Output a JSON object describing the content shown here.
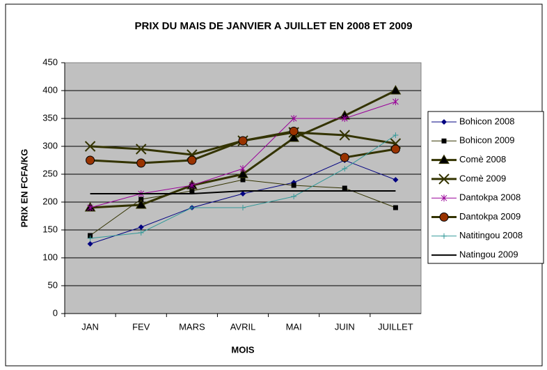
{
  "chart_data": {
    "type": "line",
    "title": "PRIX DU MAIS DE JANVIER A JUILLET EN 2008 ET 2009",
    "x_label": "MOIS",
    "y_label": "PRIX EN FCFA/KG",
    "categories": [
      "JAN",
      "FEV",
      "MARS",
      "AVRIL",
      "MAI",
      "JUIN",
      "JUILLET"
    ],
    "ylim": [
      0,
      450
    ],
    "yticks": [
      0,
      50,
      100,
      150,
      200,
      250,
      300,
      350,
      400,
      450
    ],
    "grid": true,
    "legend": "right",
    "series": [
      {
        "name": "Bohicon 2008",
        "color": "#000080",
        "marker": "diamond",
        "line_width": 1,
        "values": [
          125,
          155,
          190,
          215,
          235,
          275,
          240
        ]
      },
      {
        "name": "Bohicon 2009",
        "color": "#333300",
        "marker": "square",
        "line_width": 1,
        "values": [
          140,
          205,
          220,
          240,
          230,
          225,
          190
        ]
      },
      {
        "name": "Comè 2008",
        "color": "#333300",
        "marker": "triangle",
        "line_width": 3,
        "values": [
          190,
          195,
          230,
          250,
          315,
          355,
          400
        ]
      },
      {
        "name": "Comè 2009",
        "color": "#333300",
        "marker": "x",
        "line_width": 3,
        "values": [
          300,
          295,
          285,
          310,
          325,
          320,
          305
        ]
      },
      {
        "name": "Dantokpa 2008",
        "color": "#990099",
        "marker": "star",
        "line_width": 1,
        "values": [
          190,
          215,
          230,
          260,
          350,
          350,
          380
        ]
      },
      {
        "name": "Dantokpa 2009",
        "color": "#333300",
        "marker": "circle",
        "line_width": 3,
        "values": [
          275,
          270,
          275,
          310,
          327,
          280,
          295
        ]
      },
      {
        "name": "Natitingou 2008",
        "color": "#339999",
        "marker": "plus",
        "line_width": 1,
        "values": [
          135,
          145,
          190,
          190,
          210,
          260,
          320
        ]
      },
      {
        "name": "Natingou 2009",
        "color": "#000000",
        "marker": "none",
        "line_width": 2,
        "values": [
          215,
          215,
          215,
          220,
          220,
          220,
          220
        ]
      }
    ]
  }
}
